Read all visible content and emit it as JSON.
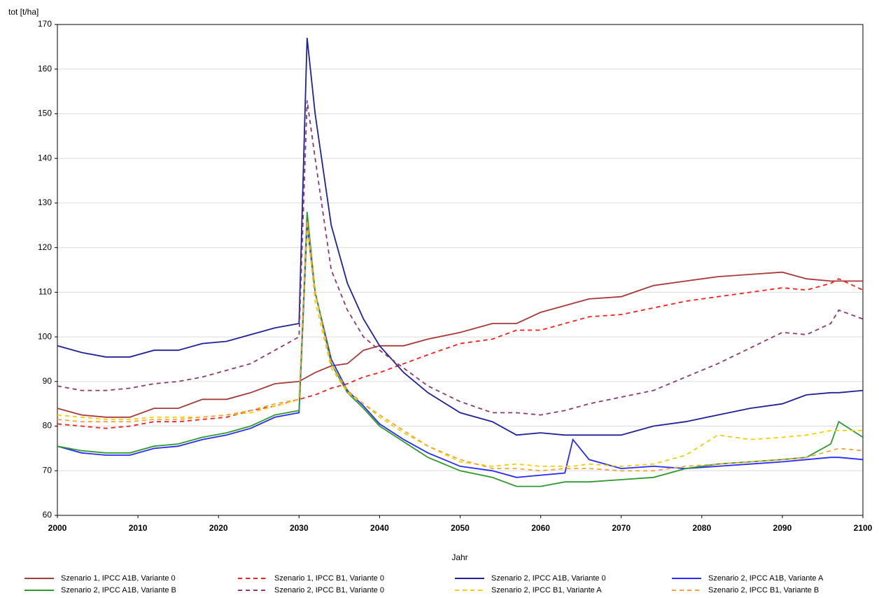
{
  "chart_data": {
    "type": "line",
    "y_label": "tot [t/ha]",
    "x_label": "Jahr",
    "xlim": [
      2000,
      2100
    ],
    "ylim": [
      60,
      170
    ],
    "xticks": [
      2000,
      2010,
      2020,
      2030,
      2040,
      2050,
      2060,
      2070,
      2080,
      2090,
      2100
    ],
    "yticks": [
      60,
      70,
      80,
      90,
      100,
      110,
      120,
      130,
      140,
      150,
      160,
      170
    ],
    "grid": true,
    "legend": "bottom",
    "x": [
      2000,
      2003,
      2006,
      2009,
      2012,
      2015,
      2018,
      2021,
      2024,
      2027,
      2030,
      2031,
      2032,
      2034,
      2036,
      2038,
      2040,
      2043,
      2046,
      2050,
      2054,
      2057,
      2060,
      2063,
      2064,
      2066,
      2070,
      2074,
      2078,
      2082,
      2086,
      2090,
      2093,
      2096,
      2097,
      2100
    ],
    "series": [
      {
        "name": "Szenario 1, IPCC A1B, Variante 0",
        "color": "#a83a3a",
        "dashed": false,
        "values": [
          84,
          82.5,
          82,
          82,
          84,
          84,
          86,
          86,
          87.5,
          89.5,
          90,
          91,
          92,
          93.5,
          94,
          97,
          98,
          98,
          99.5,
          101,
          103,
          103,
          105.5,
          107,
          107.5,
          108.5,
          109,
          111.5,
          112.5,
          113.5,
          114,
          114.5,
          113,
          112.5,
          112.5,
          112.5
        ]
      },
      {
        "name": "Szenario 1, IPCC B1, Variante 0",
        "color": "#ff1a1a",
        "dashed": true,
        "values": [
          80.5,
          80,
          79.5,
          80,
          81,
          81,
          81.5,
          82,
          83.5,
          84.5,
          86,
          86.5,
          87,
          88.5,
          89.5,
          91,
          92,
          94,
          96,
          98.5,
          99.5,
          101.5,
          101.5,
          103,
          103.5,
          104.5,
          105,
          106.5,
          108,
          109,
          110,
          111,
          110.5,
          112,
          113,
          110.5
        ]
      },
      {
        "name": "Szenario 2, IPCC A1B, Variante 0",
        "color": "#20209a",
        "dashed": false,
        "values": [
          98,
          96.5,
          95.5,
          95.5,
          97,
          97,
          98.5,
          99,
          100.5,
          102,
          103,
          167,
          150,
          125,
          112,
          104,
          98,
          92,
          87.5,
          83,
          81,
          78,
          78.5,
          78,
          78,
          78,
          78,
          80,
          81,
          82.5,
          84,
          85,
          87,
          87.5,
          87.5,
          88
        ]
      },
      {
        "name": "Szenario 2, IPCC A1B, Variante A",
        "color": "#2a2aff",
        "dashed": false,
        "values": [
          75.5,
          74,
          73.5,
          73.5,
          75,
          75.5,
          77,
          78,
          79.5,
          82,
          83,
          125,
          110,
          95,
          88,
          84.5,
          80.5,
          77,
          74,
          71,
          70,
          68.5,
          69,
          69.5,
          77,
          72.5,
          70.5,
          71,
          70.5,
          71,
          71.5,
          72,
          72.5,
          73,
          73,
          72.5
        ]
      },
      {
        "name": "Szenario 2, IPCC A1B, Variante B",
        "color": "#2e9a2e",
        "dashed": false,
        "values": [
          75.5,
          74.5,
          74,
          74,
          75.5,
          76,
          77.5,
          78.5,
          80,
          82.5,
          83.5,
          128,
          110,
          94,
          87.5,
          84,
          80,
          76.5,
          73,
          70,
          68.5,
          66.5,
          66.5,
          67.5,
          67.5,
          67.5,
          68,
          68.5,
          70.5,
          71.5,
          72,
          72.5,
          73,
          76,
          81,
          77.5
        ]
      },
      {
        "name": "Szenario 2, IPCC B1, Variante 0",
        "color": "#8b3a6b",
        "dashed": true,
        "values": [
          89,
          88,
          88,
          88.5,
          89.5,
          90,
          91,
          92.5,
          94,
          97,
          100,
          153,
          140,
          115,
          106,
          100,
          97,
          93,
          89,
          85.5,
          83,
          83,
          82.5,
          83.5,
          84,
          85,
          86.5,
          88,
          91,
          94,
          97.5,
          101,
          100.5,
          103,
          106,
          104
        ]
      },
      {
        "name": "Szenario 2, IPCC B1, Variante A",
        "color": "#f2d000",
        "dashed": true,
        "values": [
          82.5,
          82,
          81.5,
          81.5,
          82,
          82,
          82,
          82.5,
          83,
          84.5,
          86,
          125,
          108,
          93,
          87.5,
          85,
          82,
          78.5,
          75.5,
          72,
          71,
          71.5,
          71,
          71,
          71,
          71.5,
          71,
          71.5,
          73.5,
          78,
          77,
          77.5,
          78,
          79,
          79,
          79
        ]
      },
      {
        "name": "Szenario 2, IPCC B1, Variante B",
        "color": "#f0a53a",
        "dashed": true,
        "values": [
          81.5,
          81,
          81,
          81,
          81.5,
          81.5,
          82,
          82.5,
          83.5,
          85,
          86,
          126,
          110,
          94,
          88,
          85,
          82.5,
          79,
          75.5,
          72.5,
          70.5,
          70.5,
          70,
          70.5,
          70.5,
          70.5,
          70,
          70,
          71,
          71.5,
          72,
          72.5,
          73,
          74.5,
          75,
          74.5
        ]
      }
    ]
  }
}
